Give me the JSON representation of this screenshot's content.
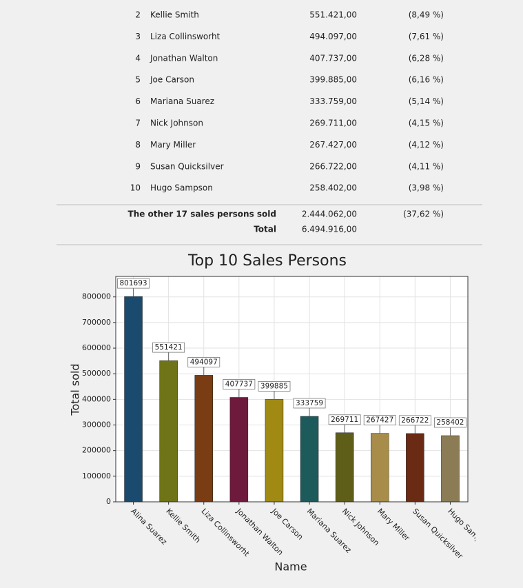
{
  "table": {
    "rows": [
      [
        2,
        "Kellie Smith",
        "551.421,00",
        "(8,49 %)"
      ],
      [
        3,
        "Liza Collinsworht",
        "494.097,00",
        "(7,61 %)"
      ],
      [
        4,
        "Jonathan Walton",
        "407.737,00",
        "(6,28 %)"
      ],
      [
        5,
        "Joe Carson",
        "399.885,00",
        "(6,16 %)"
      ],
      [
        6,
        "Mariana Suarez",
        "333.759,00",
        "(5,14 %)"
      ],
      [
        7,
        "Nick Johnson",
        "269.711,00",
        "(4,15 %)"
      ],
      [
        8,
        "Mary Miller",
        "267.427,00",
        "(4,12 %)"
      ],
      [
        9,
        "Susan Quicksilver",
        "266.722,00",
        "(4,11 %)"
      ],
      [
        10,
        "Hugo Sampson",
        "258.402,00",
        "(3,98 %)"
      ]
    ],
    "other_label": "The other 17 sales persons sold",
    "other_amount": "2.444.062,00",
    "other_percent": "(37,62 %)",
    "total_label": "Total",
    "total_amount": "6.494.916,00"
  },
  "chart_data": {
    "type": "bar",
    "title": "Top 10 Sales Persons",
    "x_label": "Name",
    "y_label": "Total sold",
    "categories": [
      "Alina Suarez",
      "Kellie Smith",
      "Liza Collinsworht",
      "Jonathan Walton",
      "Joe Carson",
      "Mariana Suarez",
      "Nick Johnson",
      "Mary Miller",
      "Susan Quicksilver",
      "Hugo Sampson"
    ],
    "values": [
      801693,
      551421,
      494097,
      407737,
      399885,
      333759,
      269711,
      267427,
      266722,
      258402
    ],
    "colors": [
      "#1a4a6e",
      "#6e7417",
      "#7a3c12",
      "#6e1a3c",
      "#a08a14",
      "#1d5a5c",
      "#5e5e18",
      "#a88c4a",
      "#6a2a14",
      "#8c7c56"
    ],
    "ylim": [
      0,
      880000
    ],
    "yticks": [
      0,
      100000,
      200000,
      300000,
      400000,
      500000,
      600000,
      700000,
      800000
    ],
    "grid": true
  }
}
